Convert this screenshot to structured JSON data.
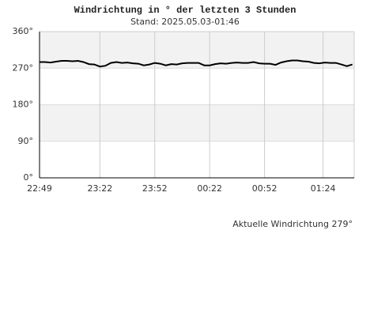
{
  "chart_data": {
    "type": "line",
    "title": "Windrichtung in ° der letzten 3 Stunden",
    "subtitle": "Stand: 2025.05.03-01:46",
    "annotation": "Aktuelle Windrichtung 279°",
    "x": [
      "22:49",
      "22:52",
      "22:55",
      "22:58",
      "23:01",
      "23:04",
      "23:07",
      "23:10",
      "23:13",
      "23:16",
      "23:19",
      "23:22",
      "23:25",
      "23:28",
      "23:31",
      "23:34",
      "23:37",
      "23:40",
      "23:43",
      "23:46",
      "23:49",
      "23:52",
      "23:55",
      "23:58",
      "00:01",
      "00:04",
      "00:07",
      "00:10",
      "00:13",
      "00:16",
      "00:19",
      "00:22",
      "00:25",
      "00:28",
      "00:31",
      "00:34",
      "00:37",
      "00:40",
      "00:43",
      "00:46",
      "00:49",
      "00:52",
      "00:55",
      "00:58",
      "01:01",
      "01:04",
      "01:07",
      "01:10",
      "01:13",
      "01:16",
      "01:19",
      "01:22",
      "01:25",
      "01:28",
      "01:31",
      "01:34",
      "01:37",
      "01:40"
    ],
    "values": [
      285,
      285,
      284,
      286,
      288,
      288,
      287,
      288,
      285,
      280,
      279,
      274,
      276,
      283,
      285,
      283,
      284,
      282,
      281,
      277,
      279,
      283,
      281,
      277,
      280,
      279,
      282,
      283,
      283,
      283,
      277,
      277,
      280,
      282,
      281,
      283,
      284,
      283,
      283,
      285,
      282,
      281,
      281,
      278,
      284,
      287,
      289,
      289,
      287,
      286,
      283,
      282,
      284,
      283,
      283,
      279,
      275,
      279
    ],
    "color": "#000000",
    "xlim": [
      "22:49",
      "01:41"
    ],
    "xticks": [
      "22:49",
      "23:22",
      "23:52",
      "00:22",
      "00:52",
      "01:24"
    ],
    "ylim": [
      0,
      360
    ],
    "yticks": [
      {
        "value": 0,
        "label": "0°"
      },
      {
        "value": 90,
        "label": "90°"
      },
      {
        "value": 180,
        "label": "180°"
      },
      {
        "value": 270,
        "label": "270°"
      },
      {
        "value": 360,
        "label": "360°"
      }
    ],
    "grid": true,
    "band_color": "#f2f2f2"
  }
}
